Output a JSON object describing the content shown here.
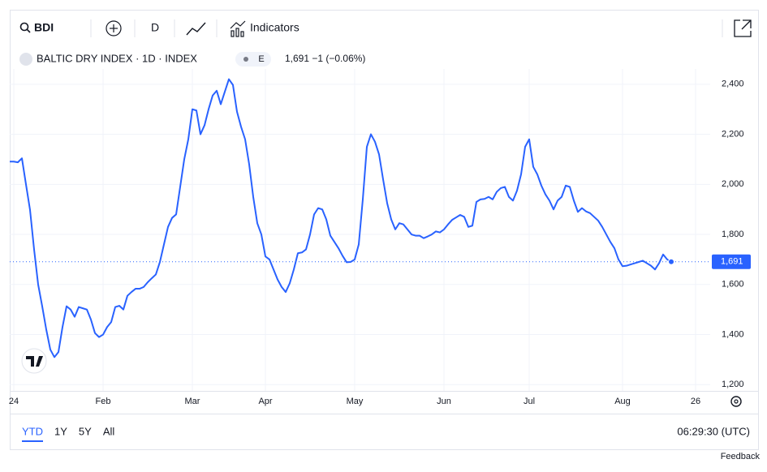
{
  "toolbar": {
    "symbol": "BDI",
    "interval": "D",
    "indicators": "Indicators"
  },
  "legend": {
    "name": "BALTIC DRY INDEX · 1D · INDEX",
    "badge": "E",
    "quote": "1,691 −1 (−0.06%)"
  },
  "chart_data": {
    "type": "line",
    "color": "#2962ff",
    "grid": true,
    "values": [
      2091,
      2091,
      2088,
      2104,
      2000,
      1898,
      1740,
      1600,
      1513,
      1420,
      1340,
      1310,
      1330,
      1430,
      1513,
      1500,
      1471,
      1510,
      1505,
      1500,
      1460,
      1406,
      1390,
      1400,
      1430,
      1450,
      1510,
      1515,
      1500,
      1555,
      1570,
      1583,
      1583,
      1590,
      1609,
      1625,
      1640,
      1690,
      1760,
      1830,
      1866,
      1880,
      1990,
      2100,
      2180,
      2300,
      2295,
      2200,
      2236,
      2300,
      2355,
      2374,
      2320,
      2370,
      2420,
      2397,
      2290,
      2230,
      2180,
      2080,
      1950,
      1845,
      1800,
      1712,
      1700,
      1660,
      1620,
      1590,
      1570,
      1605,
      1660,
      1725,
      1728,
      1740,
      1800,
      1880,
      1905,
      1900,
      1860,
      1795,
      1770,
      1745,
      1715,
      1689,
      1690,
      1700,
      1760,
      1940,
      2150,
      2200,
      2170,
      2120,
      2020,
      1925,
      1860,
      1820,
      1845,
      1840,
      1820,
      1800,
      1795,
      1795,
      1785,
      1792,
      1800,
      1812,
      1808,
      1820,
      1840,
      1858,
      1868,
      1878,
      1870,
      1830,
      1835,
      1930,
      1940,
      1942,
      1950,
      1940,
      1970,
      1985,
      1990,
      1950,
      1935,
      1975,
      2040,
      2150,
      2180,
      2070,
      2040,
      1995,
      1960,
      1935,
      1900,
      1935,
      1950,
      1995,
      1990,
      1935,
      1890,
      1905,
      1892,
      1885,
      1870,
      1855,
      1830,
      1800,
      1770,
      1745,
      1700,
      1673,
      1675,
      1680,
      1685,
      1690,
      1695,
      1685,
      1675,
      1660,
      1685,
      1720,
      1700,
      1691
    ],
    "last_value": {
      "value": 1691,
      "label": "1,691"
    },
    "xlim": [
      0,
      172.6
    ],
    "ylim": [
      1175,
      2461
    ],
    "xticks": [
      {
        "value": 1,
        "label": "24"
      },
      {
        "value": 23,
        "label": "Feb"
      },
      {
        "value": 45,
        "label": "Mar"
      },
      {
        "value": 63,
        "label": "Apr"
      },
      {
        "value": 85,
        "label": "May"
      },
      {
        "value": 107,
        "label": "Jun"
      },
      {
        "value": 128,
        "label": "Jul"
      },
      {
        "value": 151,
        "label": "Aug"
      },
      {
        "value": 169,
        "label": "26"
      }
    ],
    "yticks": [
      {
        "value": 1200,
        "label": "1,200"
      },
      {
        "value": 1400,
        "label": "1,400"
      },
      {
        "value": 1600,
        "label": "1,600"
      },
      {
        "value": 1800,
        "label": "1,800"
      },
      {
        "value": 2000,
        "label": "2,000"
      },
      {
        "value": 2200,
        "label": "2,200"
      },
      {
        "value": 2400,
        "label": "2,400"
      }
    ]
  },
  "range_bar": {
    "ranges": [
      "YTD",
      "1Y",
      "5Y",
      "All"
    ],
    "time": "06:29:30 (UTC)"
  },
  "footer": {
    "feedback": "Feedback"
  }
}
